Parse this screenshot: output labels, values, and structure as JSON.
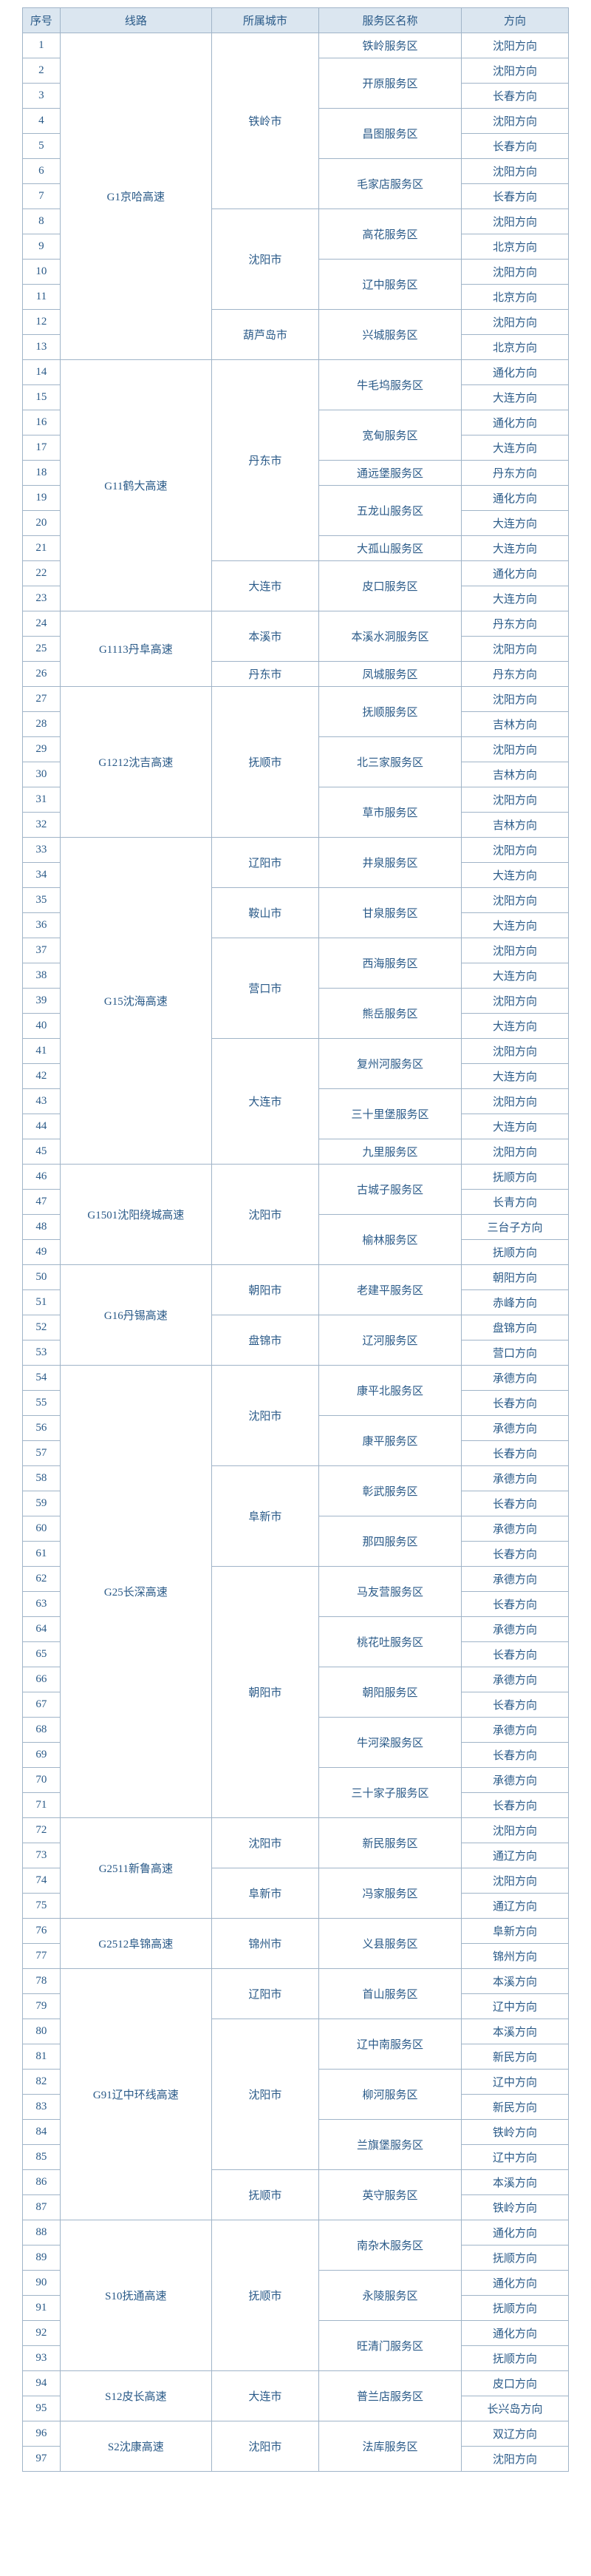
{
  "header": {
    "idx": "序号",
    "route": "线路",
    "city": "所属城市",
    "area": "服务区名称",
    "dir": "方向"
  },
  "rows": [
    {
      "n": 1,
      "route": "G1京哈高速",
      "city": "铁岭市",
      "area": "铁岭服务区",
      "dir": "沈阳方向"
    },
    {
      "n": 2,
      "area": "开原服务区",
      "dir": "沈阳方向"
    },
    {
      "n": 3,
      "dir": "长春方向"
    },
    {
      "n": 4,
      "area": "昌图服务区",
      "dir": "沈阳方向"
    },
    {
      "n": 5,
      "dir": "长春方向"
    },
    {
      "n": 6,
      "area": "毛家店服务区",
      "dir": "沈阳方向"
    },
    {
      "n": 7,
      "dir": "长春方向"
    },
    {
      "n": 8,
      "city": "沈阳市",
      "area": "高花服务区",
      "dir": "沈阳方向"
    },
    {
      "n": 9,
      "dir": "北京方向"
    },
    {
      "n": 10,
      "area": "辽中服务区",
      "dir": "沈阳方向"
    },
    {
      "n": 11,
      "dir": "北京方向"
    },
    {
      "n": 12,
      "city": "葫芦岛市",
      "area": "兴城服务区",
      "dir": "沈阳方向"
    },
    {
      "n": 13,
      "dir": "北京方向"
    },
    {
      "n": 14,
      "route": "G11鹤大高速",
      "city": "丹东市",
      "area": "牛毛坞服务区",
      "dir": "通化方向"
    },
    {
      "n": 15,
      "dir": "大连方向"
    },
    {
      "n": 16,
      "area": "宽甸服务区",
      "dir": "通化方向"
    },
    {
      "n": 17,
      "dir": "大连方向"
    },
    {
      "n": 18,
      "area": "通远堡服务区",
      "dir": "丹东方向"
    },
    {
      "n": 19,
      "area": "五龙山服务区",
      "dir": "通化方向"
    },
    {
      "n": 20,
      "dir": "大连方向"
    },
    {
      "n": 21,
      "area": "大孤山服务区",
      "dir": "大连方向"
    },
    {
      "n": 22,
      "city": "大连市",
      "area": "皮口服务区",
      "dir": "通化方向"
    },
    {
      "n": 23,
      "dir": "大连方向"
    },
    {
      "n": 24,
      "route": "G1113丹阜高速",
      "city": "本溪市",
      "area": "本溪水洞服务区",
      "dir": "丹东方向"
    },
    {
      "n": 25,
      "dir": "沈阳方向"
    },
    {
      "n": 26,
      "city": "丹东市",
      "area": "凤城服务区",
      "dir": "丹东方向"
    },
    {
      "n": 27,
      "route": "G1212沈吉高速",
      "city": "抚顺市",
      "area": "抚顺服务区",
      "dir": "沈阳方向"
    },
    {
      "n": 28,
      "dir": "吉林方向"
    },
    {
      "n": 29,
      "area": "北三家服务区",
      "dir": "沈阳方向"
    },
    {
      "n": 30,
      "dir": "吉林方向"
    },
    {
      "n": 31,
      "area": "草市服务区",
      "dir": "沈阳方向"
    },
    {
      "n": 32,
      "dir": "吉林方向"
    },
    {
      "n": 33,
      "route": "G15沈海高速",
      "city": "辽阳市",
      "area": "井泉服务区",
      "dir": "沈阳方向"
    },
    {
      "n": 34,
      "dir": "大连方向"
    },
    {
      "n": 35,
      "city": "鞍山市",
      "area": "甘泉服务区",
      "dir": "沈阳方向"
    },
    {
      "n": 36,
      "dir": "大连方向"
    },
    {
      "n": 37,
      "city": "营口市",
      "area": "西海服务区",
      "dir": "沈阳方向"
    },
    {
      "n": 38,
      "dir": "大连方向"
    },
    {
      "n": 39,
      "area": "熊岳服务区",
      "dir": "沈阳方向"
    },
    {
      "n": 40,
      "dir": "大连方向"
    },
    {
      "n": 41,
      "city": "大连市",
      "area": "复州河服务区",
      "dir": "沈阳方向"
    },
    {
      "n": 42,
      "dir": "大连方向"
    },
    {
      "n": 43,
      "area": "三十里堡服务区",
      "dir": "沈阳方向"
    },
    {
      "n": 44,
      "dir": "大连方向"
    },
    {
      "n": 45,
      "area": "九里服务区",
      "dir": "沈阳方向"
    },
    {
      "n": 46,
      "route": "G1501沈阳绕城高速",
      "city": "沈阳市",
      "area": "古城子服务区",
      "dir": "抚顺方向"
    },
    {
      "n": 47,
      "dir": "长青方向"
    },
    {
      "n": 48,
      "area": "榆林服务区",
      "dir": "三台子方向"
    },
    {
      "n": 49,
      "dir": "抚顺方向"
    },
    {
      "n": 50,
      "route": "G16丹锡高速",
      "city": "朝阳市",
      "area": "老建平服务区",
      "dir": "朝阳方向"
    },
    {
      "n": 51,
      "dir": "赤峰方向"
    },
    {
      "n": 52,
      "city": "盘锦市",
      "area": "辽河服务区",
      "dir": "盘锦方向"
    },
    {
      "n": 53,
      "dir": "营口方向"
    },
    {
      "n": 54,
      "route": "G25长深高速",
      "city": "沈阳市",
      "area": "康平北服务区",
      "dir": "承德方向"
    },
    {
      "n": 55,
      "dir": "长春方向"
    },
    {
      "n": 56,
      "area": "康平服务区",
      "dir": "承德方向"
    },
    {
      "n": 57,
      "dir": "长春方向"
    },
    {
      "n": 58,
      "city": "阜新市",
      "area": "彰武服务区",
      "dir": "承德方向"
    },
    {
      "n": 59,
      "dir": "长春方向"
    },
    {
      "n": 60,
      "area": "那四服务区",
      "dir": "承德方向"
    },
    {
      "n": 61,
      "dir": "长春方向"
    },
    {
      "n": 62,
      "city": "朝阳市",
      "area": "马友营服务区",
      "dir": "承德方向"
    },
    {
      "n": 63,
      "dir": "长春方向"
    },
    {
      "n": 64,
      "area": "桃花吐服务区",
      "dir": "承德方向"
    },
    {
      "n": 65,
      "dir": "长春方向"
    },
    {
      "n": 66,
      "area": "朝阳服务区",
      "dir": "承德方向"
    },
    {
      "n": 67,
      "dir": "长春方向"
    },
    {
      "n": 68,
      "area": "牛河梁服务区",
      "dir": "承德方向"
    },
    {
      "n": 69,
      "dir": "长春方向"
    },
    {
      "n": 70,
      "area": "三十家子服务区",
      "dir": "承德方向"
    },
    {
      "n": 71,
      "dir": "长春方向"
    },
    {
      "n": 72,
      "route": "G2511新鲁高速",
      "city": "沈阳市",
      "area": "新民服务区",
      "dir": "沈阳方向"
    },
    {
      "n": 73,
      "dir": "通辽方向"
    },
    {
      "n": 74,
      "city": "阜新市",
      "area": "冯家服务区",
      "dir": "沈阳方向"
    },
    {
      "n": 75,
      "dir": "通辽方向"
    },
    {
      "n": 76,
      "route": "G2512阜锦高速",
      "city": "锦州市",
      "area": "义县服务区",
      "dir": "阜新方向"
    },
    {
      "n": 77,
      "dir": "锦州方向"
    },
    {
      "n": 78,
      "route": "G91辽中环线高速",
      "city": "辽阳市",
      "area": "首山服务区",
      "dir": "本溪方向"
    },
    {
      "n": 79,
      "dir": "辽中方向"
    },
    {
      "n": 80,
      "city": "沈阳市",
      "area": "辽中南服务区",
      "dir": "本溪方向"
    },
    {
      "n": 81,
      "dir": "新民方向"
    },
    {
      "n": 82,
      "area": "柳河服务区",
      "dir": "辽中方向"
    },
    {
      "n": 83,
      "dir": "新民方向"
    },
    {
      "n": 84,
      "area": "兰旗堡服务区",
      "dir": "铁岭方向"
    },
    {
      "n": 85,
      "dir": "辽中方向"
    },
    {
      "n": 86,
      "city": "抚顺市",
      "area": "英守服务区",
      "dir": "本溪方向"
    },
    {
      "n": 87,
      "dir": "铁岭方向"
    },
    {
      "n": 88,
      "route": "S10抚通高速",
      "city": "抚顺市",
      "area": "南杂木服务区",
      "dir": "通化方向"
    },
    {
      "n": 89,
      "dir": "抚顺方向"
    },
    {
      "n": 90,
      "area": "永陵服务区",
      "dir": "通化方向"
    },
    {
      "n": 91,
      "dir": "抚顺方向"
    },
    {
      "n": 92,
      "area": "旺清门服务区",
      "dir": "通化方向"
    },
    {
      "n": 93,
      "dir": "抚顺方向"
    },
    {
      "n": 94,
      "route": "S12皮长高速",
      "city": "大连市",
      "area": "普兰店服务区",
      "dir": "皮口方向"
    },
    {
      "n": 95,
      "dir": "长兴岛方向"
    },
    {
      "n": 96,
      "route": "S2沈康高速",
      "city": "沈阳市",
      "area": "法库服务区",
      "dir": "双辽方向"
    },
    {
      "n": 97,
      "dir": "沈阳方向"
    }
  ],
  "spans": {
    "route": [
      {
        "start": 1,
        "end": 13
      },
      {
        "start": 14,
        "end": 23
      },
      {
        "start": 24,
        "end": 26
      },
      {
        "start": 27,
        "end": 32
      },
      {
        "start": 33,
        "end": 45
      },
      {
        "start": 46,
        "end": 49
      },
      {
        "start": 50,
        "end": 53
      },
      {
        "start": 54,
        "end": 71
      },
      {
        "start": 72,
        "end": 75
      },
      {
        "start": 76,
        "end": 77
      },
      {
        "start": 78,
        "end": 87
      },
      {
        "start": 88,
        "end": 93
      },
      {
        "start": 94,
        "end": 95
      },
      {
        "start": 96,
        "end": 97
      }
    ],
    "city": [
      {
        "start": 1,
        "end": 7
      },
      {
        "start": 8,
        "end": 11
      },
      {
        "start": 12,
        "end": 13
      },
      {
        "start": 14,
        "end": 21
      },
      {
        "start": 22,
        "end": 23
      },
      {
        "start": 24,
        "end": 25
      },
      {
        "start": 26,
        "end": 26
      },
      {
        "start": 27,
        "end": 32
      },
      {
        "start": 33,
        "end": 34
      },
      {
        "start": 35,
        "end": 36
      },
      {
        "start": 37,
        "end": 40
      },
      {
        "start": 41,
        "end": 45
      },
      {
        "start": 46,
        "end": 49
      },
      {
        "start": 50,
        "end": 51
      },
      {
        "start": 52,
        "end": 53
      },
      {
        "start": 54,
        "end": 57
      },
      {
        "start": 58,
        "end": 61
      },
      {
        "start": 62,
        "end": 71
      },
      {
        "start": 72,
        "end": 73
      },
      {
        "start": 74,
        "end": 75
      },
      {
        "start": 76,
        "end": 77
      },
      {
        "start": 78,
        "end": 79
      },
      {
        "start": 80,
        "end": 85
      },
      {
        "start": 86,
        "end": 87
      },
      {
        "start": 88,
        "end": 93
      },
      {
        "start": 94,
        "end": 95
      },
      {
        "start": 96,
        "end": 97
      }
    ],
    "area": [
      {
        "start": 1,
        "end": 1
      },
      {
        "start": 2,
        "end": 3
      },
      {
        "start": 4,
        "end": 5
      },
      {
        "start": 6,
        "end": 7
      },
      {
        "start": 8,
        "end": 9
      },
      {
        "start": 10,
        "end": 11
      },
      {
        "start": 12,
        "end": 13
      },
      {
        "start": 14,
        "end": 15
      },
      {
        "start": 16,
        "end": 17
      },
      {
        "start": 18,
        "end": 18
      },
      {
        "start": 19,
        "end": 20
      },
      {
        "start": 21,
        "end": 21
      },
      {
        "start": 22,
        "end": 23
      },
      {
        "start": 24,
        "end": 25
      },
      {
        "start": 26,
        "end": 26
      },
      {
        "start": 27,
        "end": 28
      },
      {
        "start": 29,
        "end": 30
      },
      {
        "start": 31,
        "end": 32
      },
      {
        "start": 33,
        "end": 34
      },
      {
        "start": 35,
        "end": 36
      },
      {
        "start": 37,
        "end": 38
      },
      {
        "start": 39,
        "end": 40
      },
      {
        "start": 41,
        "end": 42
      },
      {
        "start": 43,
        "end": 44
      },
      {
        "start": 45,
        "end": 45
      },
      {
        "start": 46,
        "end": 47
      },
      {
        "start": 48,
        "end": 49
      },
      {
        "start": 50,
        "end": 51
      },
      {
        "start": 52,
        "end": 53
      },
      {
        "start": 54,
        "end": 55
      },
      {
        "start": 56,
        "end": 57
      },
      {
        "start": 58,
        "end": 59
      },
      {
        "start": 60,
        "end": 61
      },
      {
        "start": 62,
        "end": 63
      },
      {
        "start": 64,
        "end": 65
      },
      {
        "start": 66,
        "end": 67
      },
      {
        "start": 68,
        "end": 69
      },
      {
        "start": 70,
        "end": 71
      },
      {
        "start": 72,
        "end": 73
      },
      {
        "start": 74,
        "end": 75
      },
      {
        "start": 76,
        "end": 77
      },
      {
        "start": 78,
        "end": 79
      },
      {
        "start": 80,
        "end": 81
      },
      {
        "start": 82,
        "end": 83
      },
      {
        "start": 84,
        "end": 85
      },
      {
        "start": 86,
        "end": 87
      },
      {
        "start": 88,
        "end": 89
      },
      {
        "start": 90,
        "end": 91
      },
      {
        "start": 92,
        "end": 93
      },
      {
        "start": 94,
        "end": 95
      },
      {
        "start": 96,
        "end": 97
      }
    ]
  },
  "colors": {
    "border": "#a0b4c8",
    "text": "#2a5a88",
    "headerBg": "#dbe6f0"
  }
}
